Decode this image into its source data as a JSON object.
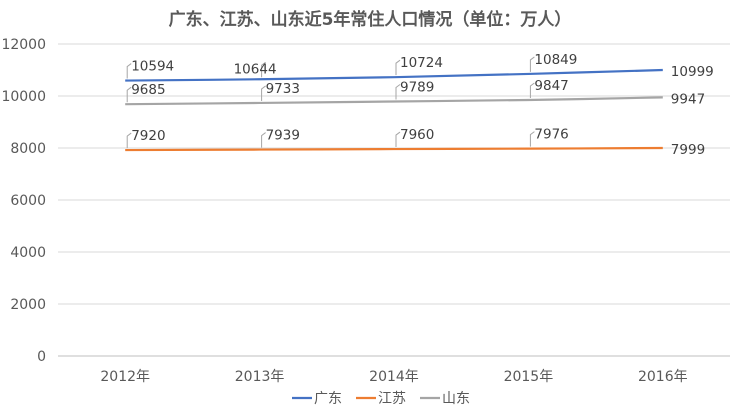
{
  "chart_data": {
    "type": "line",
    "title": "广东、江苏、山东近5年常住人口情况（单位：万人）",
    "categories": [
      "2012年",
      "2013年",
      "2014年",
      "2015年",
      "2016年"
    ],
    "ylim": [
      0,
      12000
    ],
    "yticks": [
      "0",
      "2000",
      "4000",
      "6000",
      "8000",
      "10000",
      "12000"
    ],
    "grid": true,
    "legend": "bottom",
    "series": [
      {
        "name": "广东",
        "color": "#4472C4",
        "values": [
          10594,
          10644,
          10724,
          10849,
          10999
        ]
      },
      {
        "name": "江苏",
        "color": "#ED7D31",
        "values": [
          7920,
          7939,
          7960,
          7976,
          7999
        ]
      },
      {
        "name": "山东",
        "color": "#A5A5A5",
        "values": [
          9685,
          9733,
          9789,
          9847,
          9947
        ]
      }
    ]
  }
}
